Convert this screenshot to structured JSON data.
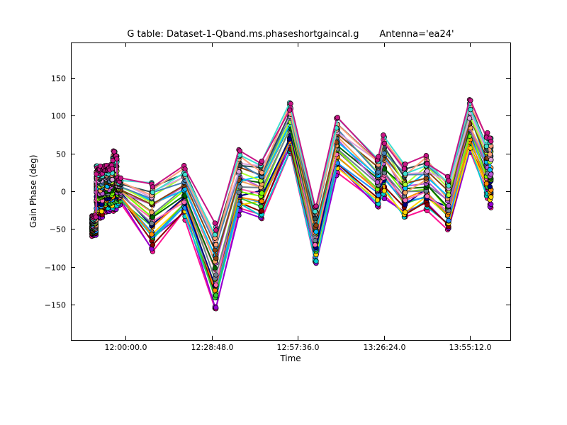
{
  "chart_data": {
    "type": "line",
    "title": "G table: Dataset-1-Qband.ms.phaseshortgaincal.g       Antenna='ea24'",
    "xlabel": "Time",
    "ylabel": "Gain Phase (deg)",
    "xlim": [
      "11:41:38.0",
      "14:08:38.0"
    ],
    "ylim": [
      -197,
      197
    ],
    "x_ticks": [
      "12:00:00.0",
      "12:28:48.0",
      "12:57:36.0",
      "13:26:24.0",
      "13:55:12.0"
    ],
    "y_ticks": [
      -150,
      -100,
      -50,
      0,
      50,
      100,
      150
    ],
    "grid": false,
    "legend": "none",
    "marker": "circle",
    "series_colors": [
      "#ff1493",
      "#9400d3",
      "#00ced1",
      "#8b0000",
      "#ffd700",
      "#32cd32",
      "#1e90ff",
      "#ff8c00",
      "#000080",
      "#ff69b4",
      "#7cfc00",
      "#708090",
      "#006400",
      "#ba55d3",
      "#f4a460",
      "#00bfff",
      "#8b4513",
      "#adff2f",
      "#4682b4",
      "#dda0dd",
      "#2f4f4f",
      "#ffa07a",
      "#40e0d0",
      "#c71585"
    ],
    "scans": [
      {
        "t": [
          "11:48:40",
          "11:50:00"
        ],
        "center": -45,
        "spread": 15
      },
      {
        "t": [
          "11:50:10",
          "11:52:10"
        ],
        "center": 0,
        "spread": 40
      },
      {
        "t": [
          "11:52:20",
          "11:55:30"
        ],
        "center": 5,
        "spread": 35
      },
      {
        "t": [
          "11:55:40",
          "11:57:00"
        ],
        "center": 15,
        "spread": 45
      },
      {
        "t": [
          "11:57:10",
          "11:58:20"
        ],
        "center": 0,
        "spread": 20
      },
      {
        "t": [
          "12:08:40",
          "12:09:00"
        ],
        "center": -30,
        "spread": 55
      },
      {
        "t": [
          "12:19:30",
          "12:19:50"
        ],
        "center": 0,
        "spread": 40
      },
      {
        "t": [
          "12:29:50",
          "12:30:10"
        ],
        "center": -100,
        "spread": 65
      },
      {
        "t": [
          "12:37:50",
          "12:38:10"
        ],
        "center": 10,
        "spread": 50
      },
      {
        "t": [
          "12:45:10",
          "12:45:30"
        ],
        "center": 5,
        "spread": 45
      },
      {
        "t": [
          "12:54:50",
          "12:55:10"
        ],
        "center": 85,
        "spread": 40
      },
      {
        "t": [
          "13:03:20",
          "13:03:40"
        ],
        "center": -55,
        "spread": 45
      },
      {
        "t": [
          "13:10:30",
          "13:10:50"
        ],
        "center": 60,
        "spread": 45
      },
      {
        "t": [
          "13:24:10",
          "13:24:30"
        ],
        "center": 15,
        "spread": 40
      },
      {
        "t": [
          "13:26:10",
          "13:26:30"
        ],
        "center": 35,
        "spread": 50
      },
      {
        "t": [
          "13:33:10",
          "13:33:30"
        ],
        "center": 0,
        "spread": 45
      },
      {
        "t": [
          "13:40:30",
          "13:40:50"
        ],
        "center": 10,
        "spread": 45
      },
      {
        "t": [
          "13:47:40",
          "13:48:00"
        ],
        "center": -15,
        "spread": 45
      },
      {
        "t": [
          "13:55:00",
          "13:55:20"
        ],
        "center": 85,
        "spread": 40
      },
      {
        "t": [
          "14:00:40",
          "14:01:00"
        ],
        "center": 35,
        "spread": 50
      },
      {
        "t": [
          "14:01:50",
          "14:02:10"
        ],
        "center": 25,
        "spread": 55
      }
    ]
  }
}
